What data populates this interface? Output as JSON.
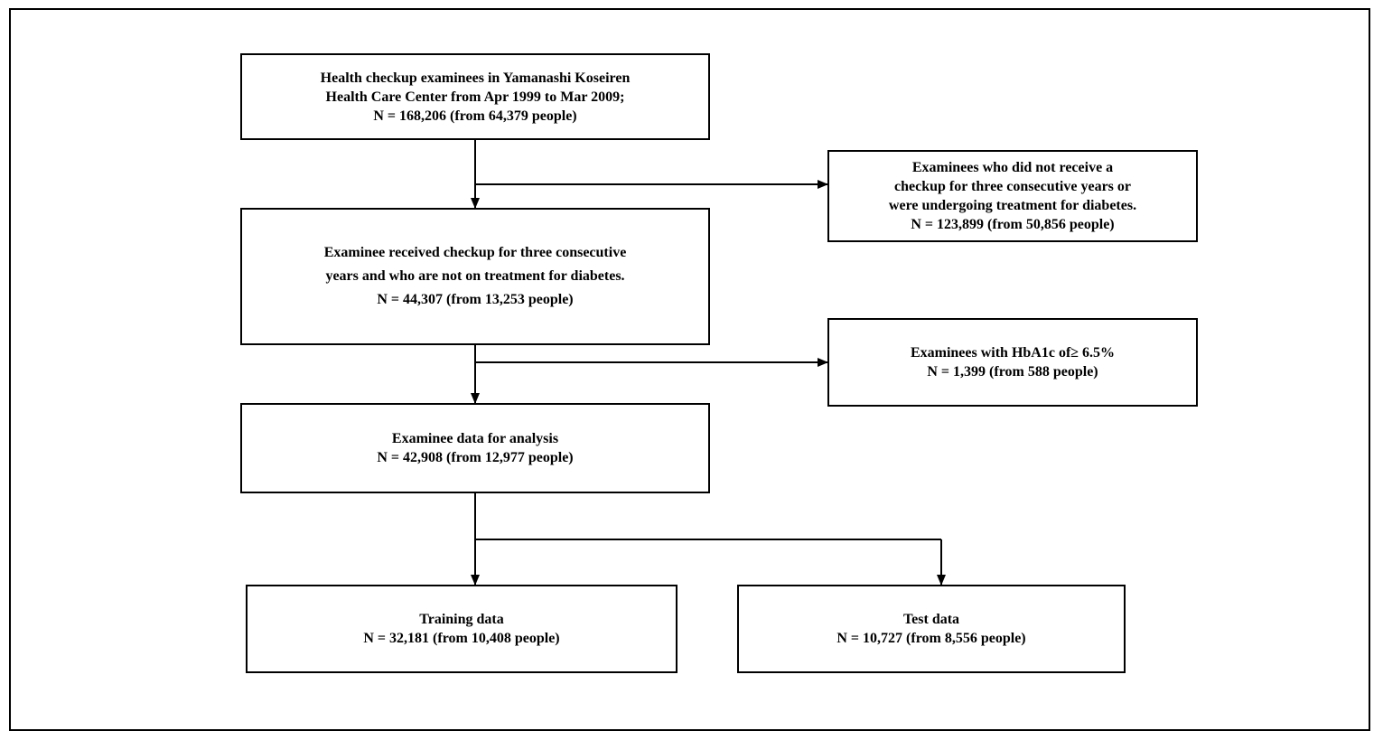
{
  "diagram": {
    "nodes": {
      "total": {
        "lines": [
          "Health checkup examinees in Yamanashi Koseiren",
          "Health Care Center from Apr 1999 to Mar 2009;",
          "N = 168,206 (from 64,379 people)"
        ]
      },
      "excluded_consecutive": {
        "lines": [
          "Examinees who did not receive a",
          "checkup for three consecutive years or",
          "were undergoing treatment for diabetes.",
          "N = 123,899 (from 50,856 people)"
        ]
      },
      "consecutive": {
        "lines": [
          "Examinee received checkup for three consecutive",
          "years and who are not on treatment for diabetes.",
          "N = 44,307 (from 13,253 people)"
        ]
      },
      "excluded_hba1c": {
        "lines": [
          "Examinees with HbA1c of≥ 6.5%",
          "N = 1,399 (from 588 people)"
        ]
      },
      "analysis": {
        "lines": [
          "Examinee data for analysis",
          "N = 42,908 (from 12,977 people)"
        ]
      },
      "training": {
        "lines": [
          "Training data",
          "N = 32,181 (from 10,408 people)"
        ]
      },
      "test": {
        "lines": [
          "Test data",
          "N = 10,727 (from 8,556 people)"
        ]
      }
    },
    "edges": [
      {
        "from": "total",
        "to": "consecutive"
      },
      {
        "from": "total",
        "to": "excluded_consecutive"
      },
      {
        "from": "consecutive",
        "to": "analysis"
      },
      {
        "from": "consecutive",
        "to": "excluded_hba1c"
      },
      {
        "from": "analysis",
        "to": "training"
      },
      {
        "from": "analysis",
        "to": "test"
      }
    ],
    "colors": {
      "line": "#000000",
      "box_border": "#000000",
      "background": "#ffffff"
    }
  }
}
